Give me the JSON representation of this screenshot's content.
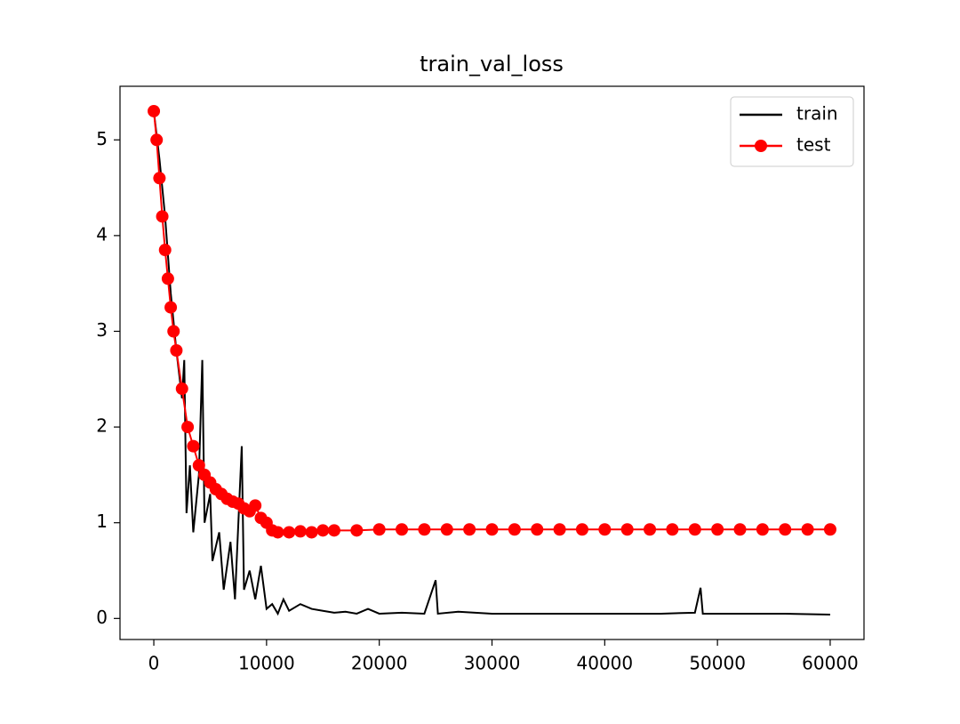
{
  "chart_data": {
    "type": "line",
    "title": "train_val_loss",
    "series": [
      {
        "name": "train",
        "color": "#000000",
        "marker": false,
        "x": [
          0,
          500,
          1000,
          1500,
          2000,
          2500,
          2700,
          2900,
          3200,
          3500,
          4000,
          4300,
          4500,
          5000,
          5200,
          5800,
          6200,
          6800,
          7200,
          7800,
          8000,
          8500,
          9000,
          9500,
          10000,
          10500,
          11000,
          11500,
          12000,
          13000,
          14000,
          15000,
          16000,
          17000,
          18000,
          19000,
          20000,
          22000,
          24000,
          25000,
          25200,
          27000,
          30000,
          35000,
          40000,
          45000,
          48000,
          48500,
          48700,
          52000,
          56000,
          60000
        ],
        "values": [
          5.3,
          4.8,
          4.2,
          3.4,
          2.8,
          2.3,
          2.7,
          1.1,
          1.6,
          0.9,
          1.5,
          2.7,
          1.0,
          1.3,
          0.6,
          0.9,
          0.3,
          0.8,
          0.2,
          1.8,
          0.3,
          0.5,
          0.2,
          0.55,
          0.1,
          0.15,
          0.05,
          0.2,
          0.08,
          0.15,
          0.1,
          0.08,
          0.06,
          0.07,
          0.05,
          0.1,
          0.05,
          0.06,
          0.05,
          0.4,
          0.05,
          0.07,
          0.05,
          0.05,
          0.05,
          0.05,
          0.06,
          0.32,
          0.05,
          0.05,
          0.05,
          0.04
        ]
      },
      {
        "name": "test",
        "color": "#ff0000",
        "marker": true,
        "x": [
          0,
          250,
          500,
          750,
          1000,
          1250,
          1500,
          1750,
          2000,
          2500,
          3000,
          3500,
          4000,
          4500,
          5000,
          5500,
          6000,
          6500,
          7000,
          7500,
          8000,
          8500,
          9000,
          9500,
          10000,
          10500,
          11000,
          12000,
          13000,
          14000,
          15000,
          16000,
          18000,
          20000,
          22000,
          24000,
          26000,
          28000,
          30000,
          32000,
          34000,
          36000,
          38000,
          40000,
          42000,
          44000,
          46000,
          48000,
          50000,
          52000,
          54000,
          56000,
          58000,
          60000
        ],
        "values": [
          5.3,
          5.0,
          4.6,
          4.2,
          3.85,
          3.55,
          3.25,
          3.0,
          2.8,
          2.4,
          2.0,
          1.8,
          1.6,
          1.5,
          1.42,
          1.35,
          1.3,
          1.25,
          1.22,
          1.2,
          1.15,
          1.12,
          1.18,
          1.05,
          1.0,
          0.92,
          0.9,
          0.9,
          0.91,
          0.9,
          0.92,
          0.92,
          0.92,
          0.93,
          0.93,
          0.93,
          0.93,
          0.93,
          0.93,
          0.93,
          0.93,
          0.93,
          0.93,
          0.93,
          0.93,
          0.93,
          0.93,
          0.93,
          0.93,
          0.93,
          0.93,
          0.93,
          0.93,
          0.93
        ]
      }
    ],
    "xlim": [
      -3000,
      63000
    ],
    "ylim": [
      -0.22,
      5.56
    ],
    "xticks": [
      0,
      10000,
      20000,
      30000,
      40000,
      50000,
      60000
    ],
    "yticks": [
      0,
      1,
      2,
      3,
      4,
      5
    ],
    "legend": "upper right"
  }
}
